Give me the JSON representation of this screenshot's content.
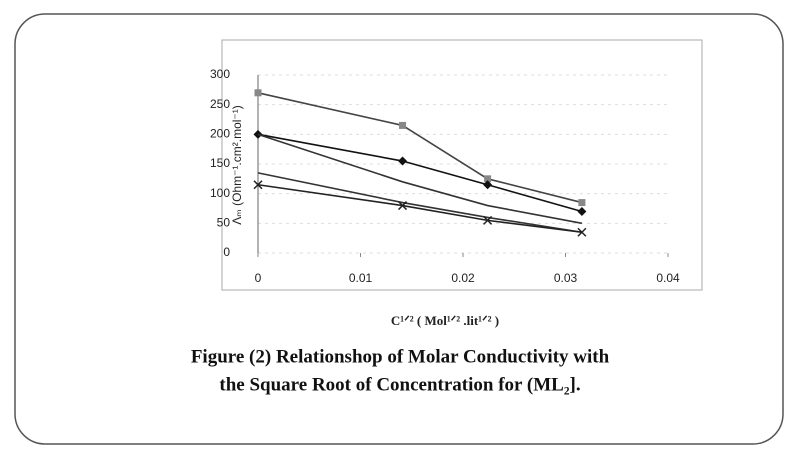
{
  "chart_data": {
    "type": "line",
    "x": [
      0,
      0.0141,
      0.0224,
      0.0316
    ],
    "series": [
      {
        "color": "#444",
        "marker": "square",
        "values": [
          270,
          215,
          125,
          85
        ]
      },
      {
        "color": "#111",
        "marker": "diamond",
        "values": [
          200,
          155,
          115,
          70
        ]
      },
      {
        "color": "#333",
        "marker": "none",
        "values": [
          200,
          120,
          80,
          50
        ]
      },
      {
        "color": "#333",
        "marker": "none",
        "values": [
          135,
          85,
          60,
          35
        ]
      },
      {
        "color": "#222",
        "marker": "x",
        "values": [
          115,
          80,
          55,
          35
        ]
      }
    ],
    "xlim": [
      0,
      0.04
    ],
    "xticks": [
      0,
      0.01,
      0.02,
      0.03,
      0.04
    ],
    "ylim": [
      0,
      300
    ],
    "yticks": [
      0,
      50,
      100,
      150,
      200,
      250,
      300
    ],
    "grid": true,
    "xlabel": "C¹ᐟ² ( Mol¹ᐟ² .lit¹ᐟ² )",
    "ylabel": "Λₘ (Ohm⁻¹.cm².mol⁻¹)",
    "caption": [
      "Figure (2) Relationshop of Molar Conductivity with",
      "the Square Root of Concentration for (ML₂]."
    ]
  }
}
